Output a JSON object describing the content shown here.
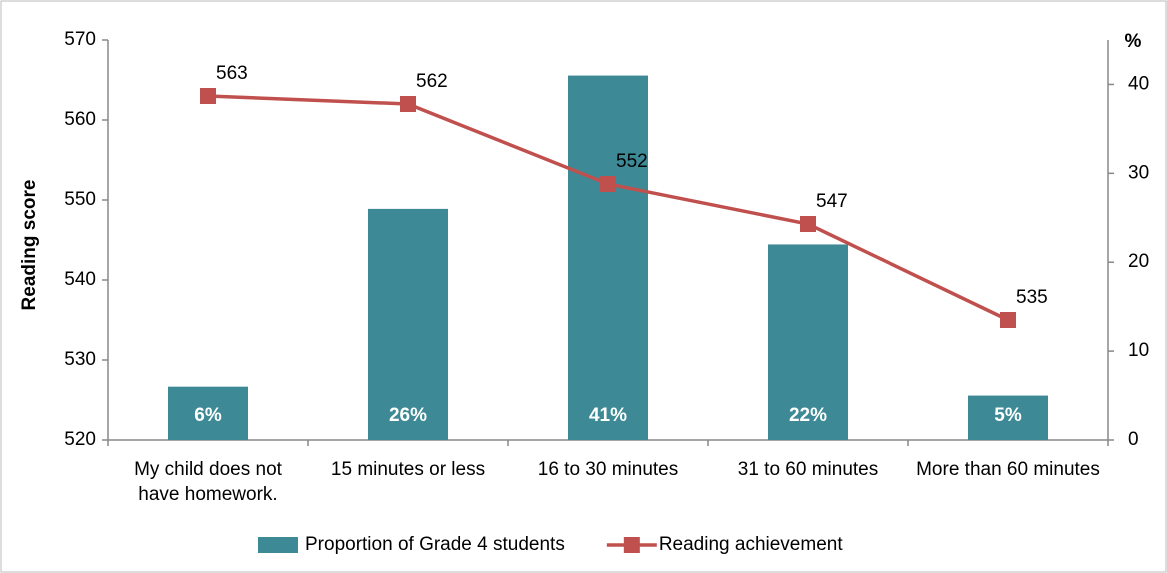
{
  "chart_data": {
    "type": "bar",
    "categories": [
      "My child does not have homework.",
      "15 minutes or less",
      "16 to 30 minutes",
      "31 to 60 minutes",
      "More than 60 minutes"
    ],
    "y_label": "Reading score",
    "y2_label": "%",
    "ylim": [
      520,
      570
    ],
    "yticks": [
      520,
      530,
      540,
      550,
      560,
      570
    ],
    "y2lim": [
      0,
      45
    ],
    "y2ticks": [
      0,
      10,
      20,
      30,
      40
    ],
    "series": [
      {
        "name": "Proportion of Grade 4 students",
        "type": "bar",
        "axis": "y2",
        "color": "#3d8a96",
        "values": [
          6,
          26,
          41,
          22,
          5
        ],
        "value_labels": [
          "6%",
          "26%",
          "41%",
          "22%",
          "5%"
        ]
      },
      {
        "name": "Reading achievement",
        "type": "line",
        "color": "#c0504d",
        "values": [
          563,
          562,
          552,
          547,
          535
        ]
      }
    ]
  }
}
